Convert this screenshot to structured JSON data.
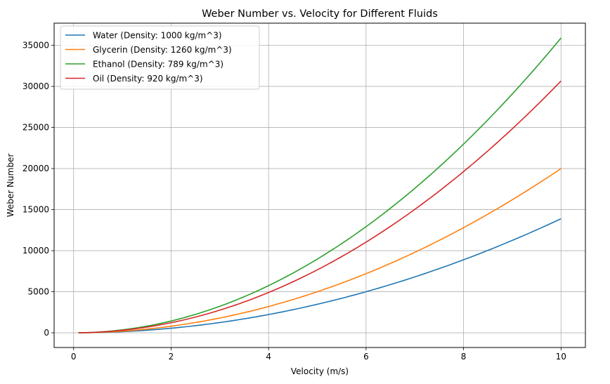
{
  "chart_data": {
    "type": "line",
    "title": "Weber Number vs. Velocity for Different Fluids",
    "xlabel": "Velocity (m/s)",
    "ylabel": "Weber Number",
    "xlim": [
      -0.4,
      10.5
    ],
    "ylim": [
      -1790,
      37700
    ],
    "xticks": [
      0,
      2,
      4,
      6,
      8,
      10
    ],
    "yticks": [
      0,
      5000,
      10000,
      15000,
      20000,
      25000,
      30000,
      35000
    ],
    "grid": true,
    "legend_position": "top-left",
    "x_range": [
      0.1,
      10
    ],
    "series": [
      {
        "name": "Water (Density: 1000 kg/m^3)",
        "color": "#1f77b4",
        "x": [
          0.1,
          1,
          2,
          3,
          4,
          5,
          6,
          7,
          8,
          9,
          10
        ],
        "values": [
          1.4,
          139,
          556,
          1250,
          2222,
          3472,
          5000,
          6806,
          8889,
          11250,
          13889
        ]
      },
      {
        "name": "Glycerin (Density: 1260 kg/m^3)",
        "color": "#ff7f0e",
        "x": [
          0.1,
          1,
          2,
          3,
          4,
          5,
          6,
          7,
          8,
          9,
          10
        ],
        "values": [
          2.0,
          200,
          800,
          1800,
          3200,
          5000,
          7200,
          9800,
          12800,
          16200,
          20000
        ]
      },
      {
        "name": "Ethanol (Density: 789 kg/m^3)",
        "color": "#2ca02c",
        "x": [
          0.1,
          1,
          2,
          3,
          4,
          5,
          6,
          7,
          8,
          9,
          10
        ],
        "values": [
          3.6,
          359,
          1436,
          3231,
          5744,
          8975,
          12924,
          17591,
          22976,
          29079,
          35900
        ]
      },
      {
        "name": "Oil (Density: 920 kg/m^3)",
        "color": "#d62728",
        "x": [
          0.1,
          1,
          2,
          3,
          4,
          5,
          6,
          7,
          8,
          9,
          10
        ],
        "values": [
          3.1,
          307,
          1227,
          2760,
          4907,
          7667,
          11040,
          15027,
          19627,
          24840,
          30667
        ]
      }
    ]
  }
}
